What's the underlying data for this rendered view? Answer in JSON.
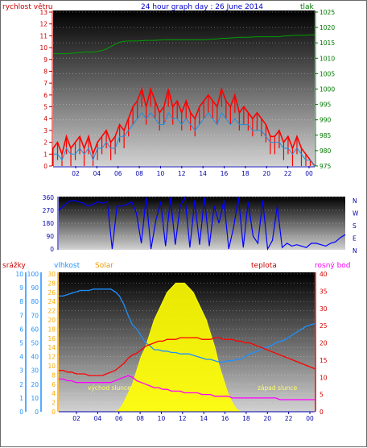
{
  "header": {
    "wind_label": "rychlost větru",
    "title": "24 hour graph day : 26 June 2014",
    "pressure_label": "tlak"
  },
  "bottom_labels": {
    "rain": "srážky",
    "humidity": "vlhkost",
    "solar": "Solar",
    "temperature": "teplota",
    "dewpoint": "rosný bod",
    "sunrise": "východ slunce",
    "sunset": "západ slunce"
  },
  "colors": {
    "wind": "#ff0000",
    "gust_avg": "#1e8fe0",
    "pressure": "#00a000",
    "direction": "#0000ff",
    "humidity": "#1e90ff",
    "solar": "#ffff00",
    "temperature": "#ff0000",
    "dewpoint": "#ff00ff",
    "rain_axis": "#1e90ff",
    "solar_axis": "#ffaa00",
    "temp_axis": "#d00000",
    "dew_axis": "#ff00ff"
  },
  "chart_data": [
    {
      "type": "line",
      "name_hint": "wind_pressure",
      "x_ticks": [
        "02",
        "04",
        "06",
        "08",
        "10",
        "12",
        "14",
        "16",
        "18",
        "20",
        "22",
        "00"
      ],
      "left_axis": {
        "label": "rychlost větru",
        "ticks": [
          "0",
          "1",
          "2",
          "3",
          "4",
          "5",
          "6",
          "7",
          "8",
          "9",
          "10",
          "11",
          "12",
          "13"
        ],
        "ylim": [
          0,
          13
        ]
      },
      "right_axis": {
        "label": "tlak",
        "ticks": [
          "975",
          "980",
          "985",
          "990",
          "995",
          "1000",
          "1005",
          "1010",
          "1015",
          "1020",
          "1025"
        ],
        "ylim": [
          975,
          1025
        ]
      },
      "series": [
        {
          "role": "wind",
          "values": [
            1.5,
            2,
            1,
            2.5,
            1.5,
            2,
            2.5,
            1.5,
            2.5,
            1,
            2,
            2.5,
            3,
            2,
            2.5,
            3.5,
            3,
            4,
            5,
            5.5,
            6.5,
            5,
            6.5,
            5.5,
            4.5,
            5,
            6.5,
            5,
            5.5,
            4.5,
            5.5,
            4.5,
            4,
            5,
            5.5,
            6,
            5.5,
            5,
            6.5,
            5.5,
            5,
            6,
            4.5,
            5,
            4.5,
            4,
            4.5,
            4,
            3.5,
            2.5,
            2.5,
            3,
            2,
            2.5,
            1.5,
            2.5,
            1.5,
            1,
            0.5,
            0
          ]
        },
        {
          "role": "gust_avg",
          "values": [
            1,
            1,
            0.5,
            1.5,
            1,
            1,
            1.5,
            1,
            1.5,
            0.5,
            1.5,
            1.5,
            2,
            1.5,
            1.5,
            2.5,
            2.5,
            3,
            3.5,
            4,
            4.5,
            4,
            4.5,
            4,
            3.5,
            3.5,
            4.5,
            4,
            4,
            3.5,
            4,
            3.5,
            3,
            3.5,
            4,
            4.5,
            4,
            3.5,
            4.5,
            4,
            3.5,
            4,
            3.5,
            3.5,
            3.5,
            3,
            3,
            3,
            2.5,
            2,
            2,
            2,
            1.5,
            1.5,
            1,
            1.5,
            1,
            0.5,
            0.5,
            0
          ]
        },
        {
          "role": "pressure",
          "values": [
            1011.5,
            1011.5,
            1011.5,
            1011.5,
            1011.6,
            1011.7,
            1011.8,
            1012,
            1012,
            1012,
            1012.2,
            1012.5,
            1013,
            1013.8,
            1014.5,
            1015.2,
            1015.5,
            1015.6,
            1015.6,
            1015.6,
            1015.7,
            1015.8,
            1015.8,
            1015.8,
            1015.9,
            1016,
            1016,
            1016,
            1016,
            1016,
            1016,
            1016,
            1016,
            1016,
            1016,
            1016.1,
            1016.2,
            1016.3,
            1016.5,
            1016.5,
            1016.6,
            1016.7,
            1016.8,
            1016.8,
            1016.8,
            1016.9,
            1017,
            1017,
            1017,
            1017,
            1017,
            1017,
            1017.2,
            1017.3,
            1017.4,
            1017.5,
            1017.5,
            1017.5,
            1017.6,
            1017.6
          ]
        }
      ]
    },
    {
      "type": "line",
      "name_hint": "wind_direction",
      "left_axis": {
        "ticks": [
          "0",
          "90",
          "180",
          "270",
          "360"
        ],
        "ylim": [
          0,
          360
        ]
      },
      "right_labels": [
        "N",
        "W",
        "S",
        "E",
        "N"
      ],
      "series": [
        {
          "role": "direction",
          "values": [
            270,
            300,
            330,
            340,
            330,
            320,
            300,
            310,
            330,
            320,
            330,
            0,
            300,
            300,
            310,
            330,
            250,
            40,
            360,
            0,
            200,
            330,
            20,
            360,
            30,
            300,
            360,
            10,
            340,
            30,
            360,
            20,
            300,
            180,
            340,
            0,
            150,
            360,
            10,
            330,
            90,
            40,
            340,
            0,
            60,
            300,
            10,
            40,
            20,
            30,
            20,
            10,
            40,
            40,
            30,
            20,
            40,
            50,
            80,
            100
          ]
        }
      ]
    },
    {
      "type": "line",
      "name_hint": "humidity_solar_temperature",
      "x_ticks": [
        "02",
        "04",
        "06",
        "08",
        "10",
        "12",
        "14",
        "16",
        "18",
        "20",
        "22",
        "00"
      ],
      "axes": {
        "rain": {
          "label": "srážky",
          "ticks": [
            "0",
            "1",
            "2",
            "3",
            "4",
            "5",
            "6",
            "7",
            "8",
            "9",
            "10"
          ],
          "ylim": [
            0,
            10
          ]
        },
        "humidity": {
          "label": "vlhkost",
          "ticks": [
            "0",
            "10",
            "20",
            "30",
            "40",
            "50",
            "60",
            "70",
            "80",
            "90",
            "100"
          ],
          "ylim": [
            0,
            100
          ]
        },
        "solar": {
          "label": "Solar",
          "ticks": [
            "0",
            "2",
            "4",
            "6",
            "8",
            "10",
            "12",
            "14",
            "16",
            "18",
            "20",
            "22",
            "24",
            "26",
            "28",
            "30"
          ],
          "ylim": [
            0,
            30
          ]
        },
        "temperature": {
          "label": "teplota",
          "ticks": [
            "0",
            "5",
            "10",
            "15",
            "20",
            "25",
            "30",
            "35",
            "40"
          ],
          "ylim": [
            0,
            40
          ]
        },
        "dewpoint": {
          "label": "rosný bod"
        }
      },
      "series": [
        {
          "role": "humidity",
          "values": [
            84,
            84,
            85,
            86,
            87,
            88,
            88,
            88,
            89,
            89,
            89,
            89,
            89,
            87,
            84,
            78,
            70,
            63,
            60,
            55,
            50,
            48,
            45,
            45,
            44,
            44,
            43,
            43,
            42,
            42,
            42,
            41,
            40,
            39,
            38,
            38,
            37,
            36,
            36,
            37,
            37,
            38,
            38,
            40,
            42,
            43,
            44,
            46,
            47,
            48,
            50,
            51,
            52,
            54,
            56,
            58,
            60,
            62,
            63,
            64
          ]
        },
        {
          "role": "solar",
          "values": [
            0,
            0,
            0,
            0,
            0,
            0,
            0,
            0,
            0,
            0,
            0,
            0,
            0,
            0,
            0.5,
            2,
            4,
            6,
            9,
            12,
            14,
            17,
            20,
            22,
            24,
            26,
            27,
            28,
            28,
            28,
            27,
            26,
            24,
            22,
            20,
            17,
            14,
            10,
            7,
            4,
            2,
            0.5,
            0,
            0,
            0,
            0,
            0,
            0,
            0,
            0,
            0,
            0,
            0,
            0,
            0,
            0,
            0,
            0,
            0,
            0
          ]
        },
        {
          "role": "temperature",
          "values": [
            12,
            12,
            11.5,
            11.5,
            11,
            11,
            11,
            10.5,
            10.5,
            10.5,
            10.5,
            11,
            11.5,
            12,
            13,
            14,
            15.5,
            16.5,
            17,
            18,
            19,
            19.5,
            20,
            20.5,
            20.5,
            21,
            21,
            21,
            21.5,
            21.5,
            21.5,
            21.5,
            21.5,
            21,
            21,
            21,
            21.5,
            21.5,
            21,
            21,
            21,
            20.5,
            20.5,
            20,
            20,
            19.5,
            19,
            18.5,
            18,
            17.5,
            17,
            16.5,
            16,
            15.5,
            15,
            14.5,
            14,
            13.5,
            13,
            12.5
          ]
        },
        {
          "role": "dewpoint",
          "values": [
            9.5,
            9.5,
            9,
            9,
            8.5,
            8.5,
            8.5,
            8.5,
            8.5,
            8.5,
            8.5,
            8.5,
            8.5,
            9,
            9.5,
            10,
            10.5,
            10,
            9,
            8.5,
            8,
            7.5,
            7,
            7,
            6.5,
            6.5,
            6,
            6,
            6,
            5.5,
            5.5,
            5.5,
            5.5,
            5,
            5,
            5,
            4.5,
            4.5,
            4.5,
            4.5,
            4,
            4,
            4,
            4,
            4,
            4,
            4,
            4,
            4,
            4,
            4,
            3.5,
            3.5,
            3.5,
            3.5,
            3.5,
            3.5,
            3.5,
            3.5,
            3.5
          ]
        }
      ]
    }
  ]
}
